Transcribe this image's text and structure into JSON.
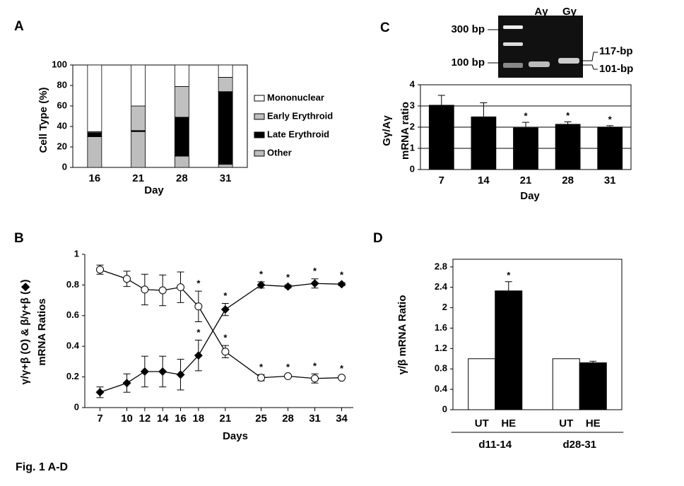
{
  "figure_caption": "Fig. 1 A-D",
  "gel": {
    "lanes": [
      "Aγ",
      "Gγ"
    ],
    "markers": [
      "300 bp",
      "100 bp"
    ],
    "bands": [
      "117-bp",
      "101-bp"
    ]
  },
  "chart_data": [
    {
      "type": "stacked_bar",
      "panel": "A",
      "ylabel": [
        "Cell Type (%)"
      ],
      "xlabel": "Day",
      "categories": [
        "16",
        "21",
        "28",
        "31"
      ],
      "series": [
        {
          "name": "Other",
          "color": "#bdbdbd",
          "values": [
            30,
            35,
            11,
            3
          ]
        },
        {
          "name": "Late Erythroid",
          "color": "#000000",
          "values": [
            4,
            1,
            38,
            71
          ]
        },
        {
          "name": "Early Erythroid",
          "color": "#c0c0c0",
          "values": [
            1,
            24,
            30,
            14
          ]
        },
        {
          "name": "Mononuclear",
          "color": "#ffffff",
          "values": [
            65,
            40,
            21,
            12
          ]
        }
      ],
      "ylim": [
        0,
        100
      ],
      "yticks": [
        0,
        20,
        40,
        60,
        80,
        100
      ]
    },
    {
      "type": "bar",
      "panel": "C",
      "ylabel": [
        "Gγ/Aγ",
        "mRNA ratio"
      ],
      "xlabel": "Day",
      "categories": [
        "7",
        "14",
        "21",
        "28",
        "31"
      ],
      "color": "#000000",
      "values": [
        3.05,
        2.5,
        1.98,
        2.15,
        2.02
      ],
      "errors": [
        0.45,
        0.65,
        0.25,
        0.1,
        0.05
      ],
      "significance": [
        null,
        null,
        "*",
        "*",
        "*"
      ],
      "ylim": [
        0,
        4
      ],
      "yticks": [
        0,
        1,
        2,
        3,
        4
      ],
      "grid": true
    },
    {
      "type": "line",
      "panel": "B",
      "ylabel": [
        "γ/γ+β (O) & β/γ+β (◆)",
        "mRNA Ratios"
      ],
      "xlabel": "Days",
      "x": [
        7,
        10,
        12,
        14,
        16,
        18,
        21,
        25,
        28,
        31,
        34
      ],
      "series": [
        {
          "color": "#ffffff",
          "marker": "circle",
          "values": [
            0.9,
            0.84,
            0.77,
            0.765,
            0.785,
            0.66,
            0.365,
            0.195,
            0.205,
            0.19,
            0.195
          ],
          "errors": [
            0.03,
            0.05,
            0.1,
            0.1,
            0.1,
            0.1,
            0.04,
            0.02,
            0.01,
            0.03,
            0.01
          ],
          "significance": [
            null,
            null,
            null,
            null,
            null,
            "*",
            "*",
            "*",
            "*",
            "*",
            "*"
          ]
        },
        {
          "color": "#000000",
          "marker": "diamond",
          "values": [
            0.1,
            0.16,
            0.235,
            0.235,
            0.215,
            0.34,
            0.64,
            0.8,
            0.79,
            0.81,
            0.805
          ],
          "errors": [
            0.035,
            0.06,
            0.1,
            0.1,
            0.1,
            0.1,
            0.04,
            0.02,
            0.01,
            0.03,
            0.01
          ],
          "significance": [
            null,
            null,
            null,
            null,
            null,
            "*",
            "*",
            "*",
            "*",
            "*",
            "*"
          ]
        }
      ],
      "xlim": [
        5.3,
        35.3
      ],
      "xticks": [
        7,
        10,
        12,
        14,
        16,
        18,
        21,
        25,
        28,
        31,
        34
      ],
      "ylim": [
        0,
        1
      ],
      "yticks": [
        0,
        0.2,
        0.4,
        0.6,
        0.8,
        1
      ]
    },
    {
      "type": "grouped_bar",
      "panel": "D",
      "ylabel": [
        "γ/β mRNA Ratio"
      ],
      "categories": [
        "d11-14",
        "d28-31"
      ],
      "series": [
        {
          "name": "UT",
          "color": "#ffffff",
          "values": [
            1.0,
            1.0
          ],
          "errors": [
            0,
            0
          ],
          "significance": [
            null,
            null
          ]
        },
        {
          "name": "HE",
          "color": "#000000",
          "values": [
            2.33,
            0.92
          ],
          "errors": [
            0.18,
            0.03
          ],
          "significance": [
            "*",
            null
          ]
        }
      ],
      "ylim": [
        0,
        2.95
      ],
      "yticks": [
        0,
        0.4,
        0.8,
        1.2,
        1.6,
        2,
        2.4,
        2.8
      ]
    }
  ]
}
